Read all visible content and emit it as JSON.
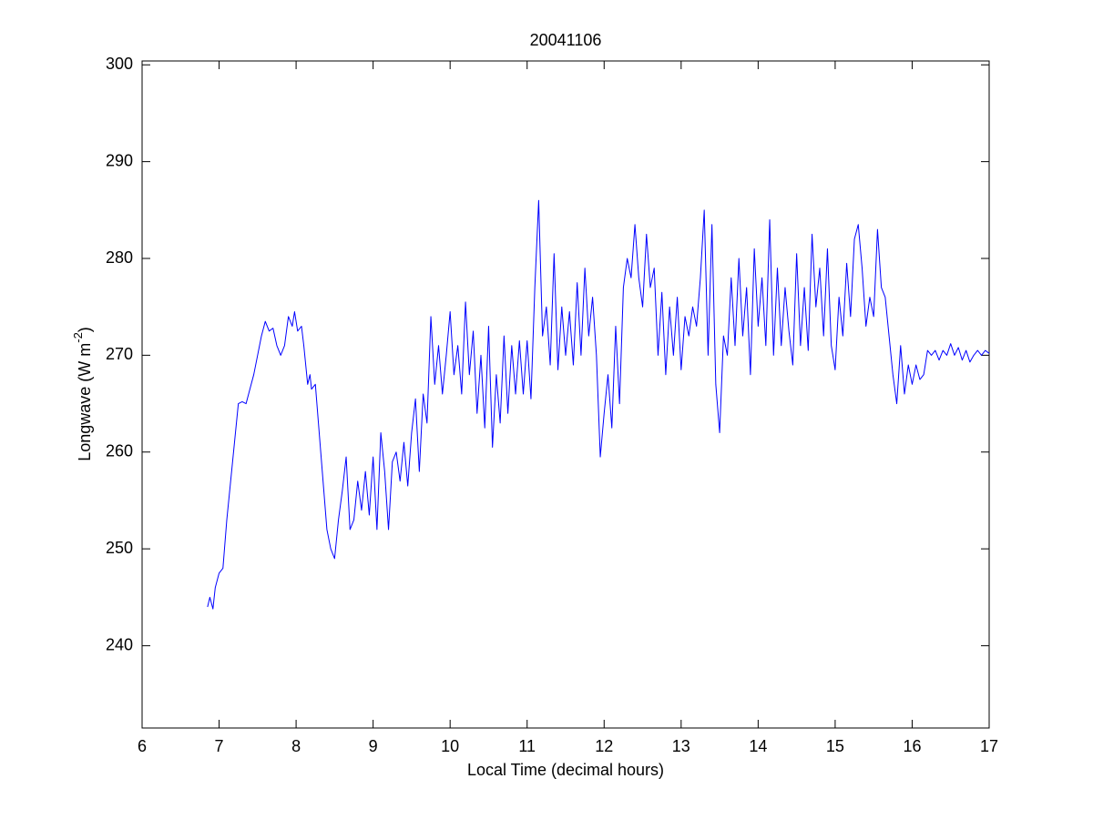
{
  "chart_data": {
    "type": "line",
    "title": "20041106",
    "xlabel": "Local Time (decimal hours)",
    "ylabel": [
      "Longwave (W m",
      "-2",
      ")"
    ],
    "xlim": [
      6,
      17
    ],
    "ylim": [
      231.5,
      300.4
    ],
    "xticks": [
      6,
      7,
      8,
      9,
      10,
      11,
      12,
      13,
      14,
      15,
      16,
      17
    ],
    "yticks": [
      240,
      250,
      260,
      270,
      280,
      290,
      300
    ],
    "grid": false,
    "series": [
      {
        "color": "#0000ff",
        "x": [
          6.85,
          6.88,
          6.92,
          6.95,
          7.0,
          7.05,
          7.1,
          7.15,
          7.2,
          7.25,
          7.3,
          7.35,
          7.4,
          7.45,
          7.5,
          7.55,
          7.6,
          7.65,
          7.7,
          7.75,
          7.8,
          7.85,
          7.9,
          7.95,
          7.98,
          8.02,
          8.07,
          8.1,
          8.15,
          8.18,
          8.2,
          8.25,
          8.3,
          8.35,
          8.4,
          8.45,
          8.5,
          8.55,
          8.6,
          8.65,
          8.7,
          8.75,
          8.8,
          8.85,
          8.9,
          8.95,
          9.0,
          9.05,
          9.1,
          9.15,
          9.2,
          9.25,
          9.3,
          9.35,
          9.4,
          9.45,
          9.5,
          9.55,
          9.6,
          9.65,
          9.7,
          9.75,
          9.8,
          9.85,
          9.9,
          9.95,
          10.0,
          10.05,
          10.1,
          10.15,
          10.2,
          10.25,
          10.3,
          10.35,
          10.4,
          10.45,
          10.5,
          10.55,
          10.6,
          10.65,
          10.7,
          10.75,
          10.8,
          10.85,
          10.9,
          10.95,
          11.0,
          11.05,
          11.1,
          11.15,
          11.2,
          11.25,
          11.3,
          11.35,
          11.4,
          11.45,
          11.5,
          11.55,
          11.6,
          11.65,
          11.7,
          11.75,
          11.8,
          11.85,
          11.9,
          11.95,
          12.0,
          12.05,
          12.1,
          12.15,
          12.2,
          12.25,
          12.3,
          12.35,
          12.4,
          12.45,
          12.5,
          12.55,
          12.6,
          12.65,
          12.7,
          12.75,
          12.8,
          12.85,
          12.9,
          12.95,
          13.0,
          13.05,
          13.1,
          13.15,
          13.2,
          13.25,
          13.3,
          13.35,
          13.4,
          13.45,
          13.5,
          13.55,
          13.6,
          13.65,
          13.7,
          13.75,
          13.8,
          13.85,
          13.9,
          13.95,
          14.0,
          14.05,
          14.1,
          14.15,
          14.2,
          14.25,
          14.3,
          14.35,
          14.4,
          14.45,
          14.5,
          14.55,
          14.6,
          14.65,
          14.7,
          14.75,
          14.8,
          14.85,
          14.9,
          14.95,
          15.0,
          15.05,
          15.1,
          15.15,
          15.2,
          15.25,
          15.3,
          15.35,
          15.4,
          15.45,
          15.5,
          15.55,
          15.6,
          15.65,
          15.7,
          15.75,
          15.8,
          15.85,
          15.9,
          15.95,
          16.0,
          16.05,
          16.1,
          16.15,
          16.2,
          16.25,
          16.3,
          16.35,
          16.4,
          16.45,
          16.5,
          16.55,
          16.6,
          16.65,
          16.7,
          16.75,
          16.8,
          16.85,
          16.9,
          16.95,
          17.0
        ],
        "values": [
          244,
          245,
          243.8,
          246,
          247.5,
          248,
          253,
          257,
          261,
          265,
          265.2,
          265,
          266.5,
          268,
          270,
          272,
          273.5,
          272.5,
          272.8,
          271,
          270,
          271,
          274,
          273,
          274.5,
          272.5,
          273,
          271,
          267,
          268,
          266.5,
          267,
          262,
          257,
          252,
          250,
          249,
          253,
          256,
          259.5,
          252,
          253,
          257,
          254,
          258,
          253.5,
          259.5,
          252,
          262,
          258,
          252,
          259,
          260,
          257,
          261,
          256.5,
          262,
          265.5,
          258,
          266,
          263,
          274,
          267,
          271,
          266,
          270,
          274.5,
          268,
          271,
          266,
          275.5,
          268,
          272.5,
          264,
          270,
          262.5,
          273,
          260.5,
          268,
          263,
          272,
          264,
          271,
          266,
          271.5,
          266,
          271.5,
          265.5,
          277,
          286,
          272,
          275,
          269,
          280.5,
          268.5,
          275,
          270,
          274.5,
          269,
          277.5,
          270,
          279,
          272,
          276,
          270,
          259.5,
          264,
          268,
          262.5,
          273,
          265,
          277,
          280,
          278,
          283.5,
          278,
          275,
          282.5,
          277,
          279,
          270,
          276.5,
          268,
          275,
          270,
          276,
          268.5,
          274,
          272,
          275,
          273,
          278,
          285,
          270,
          283.5,
          267,
          262,
          272,
          270,
          278,
          271,
          280,
          272,
          277,
          268,
          281,
          273,
          278,
          271,
          284,
          270,
          279,
          271,
          277,
          272.5,
          269,
          280.5,
          271,
          277,
          270.5,
          282.5,
          275,
          279,
          272,
          281,
          271,
          268.5,
          276,
          272,
          279.5,
          274,
          282,
          283.5,
          279,
          273,
          276,
          274,
          283,
          277,
          276,
          272,
          268,
          265,
          271,
          266,
          269,
          267,
          269,
          267.5,
          268,
          270.5,
          270,
          270.5,
          269.5,
          270.5,
          270,
          271.2,
          270,
          270.8,
          269.5,
          270.5,
          269.3,
          270,
          270.5,
          270,
          270.5,
          270.2
        ]
      }
    ]
  }
}
